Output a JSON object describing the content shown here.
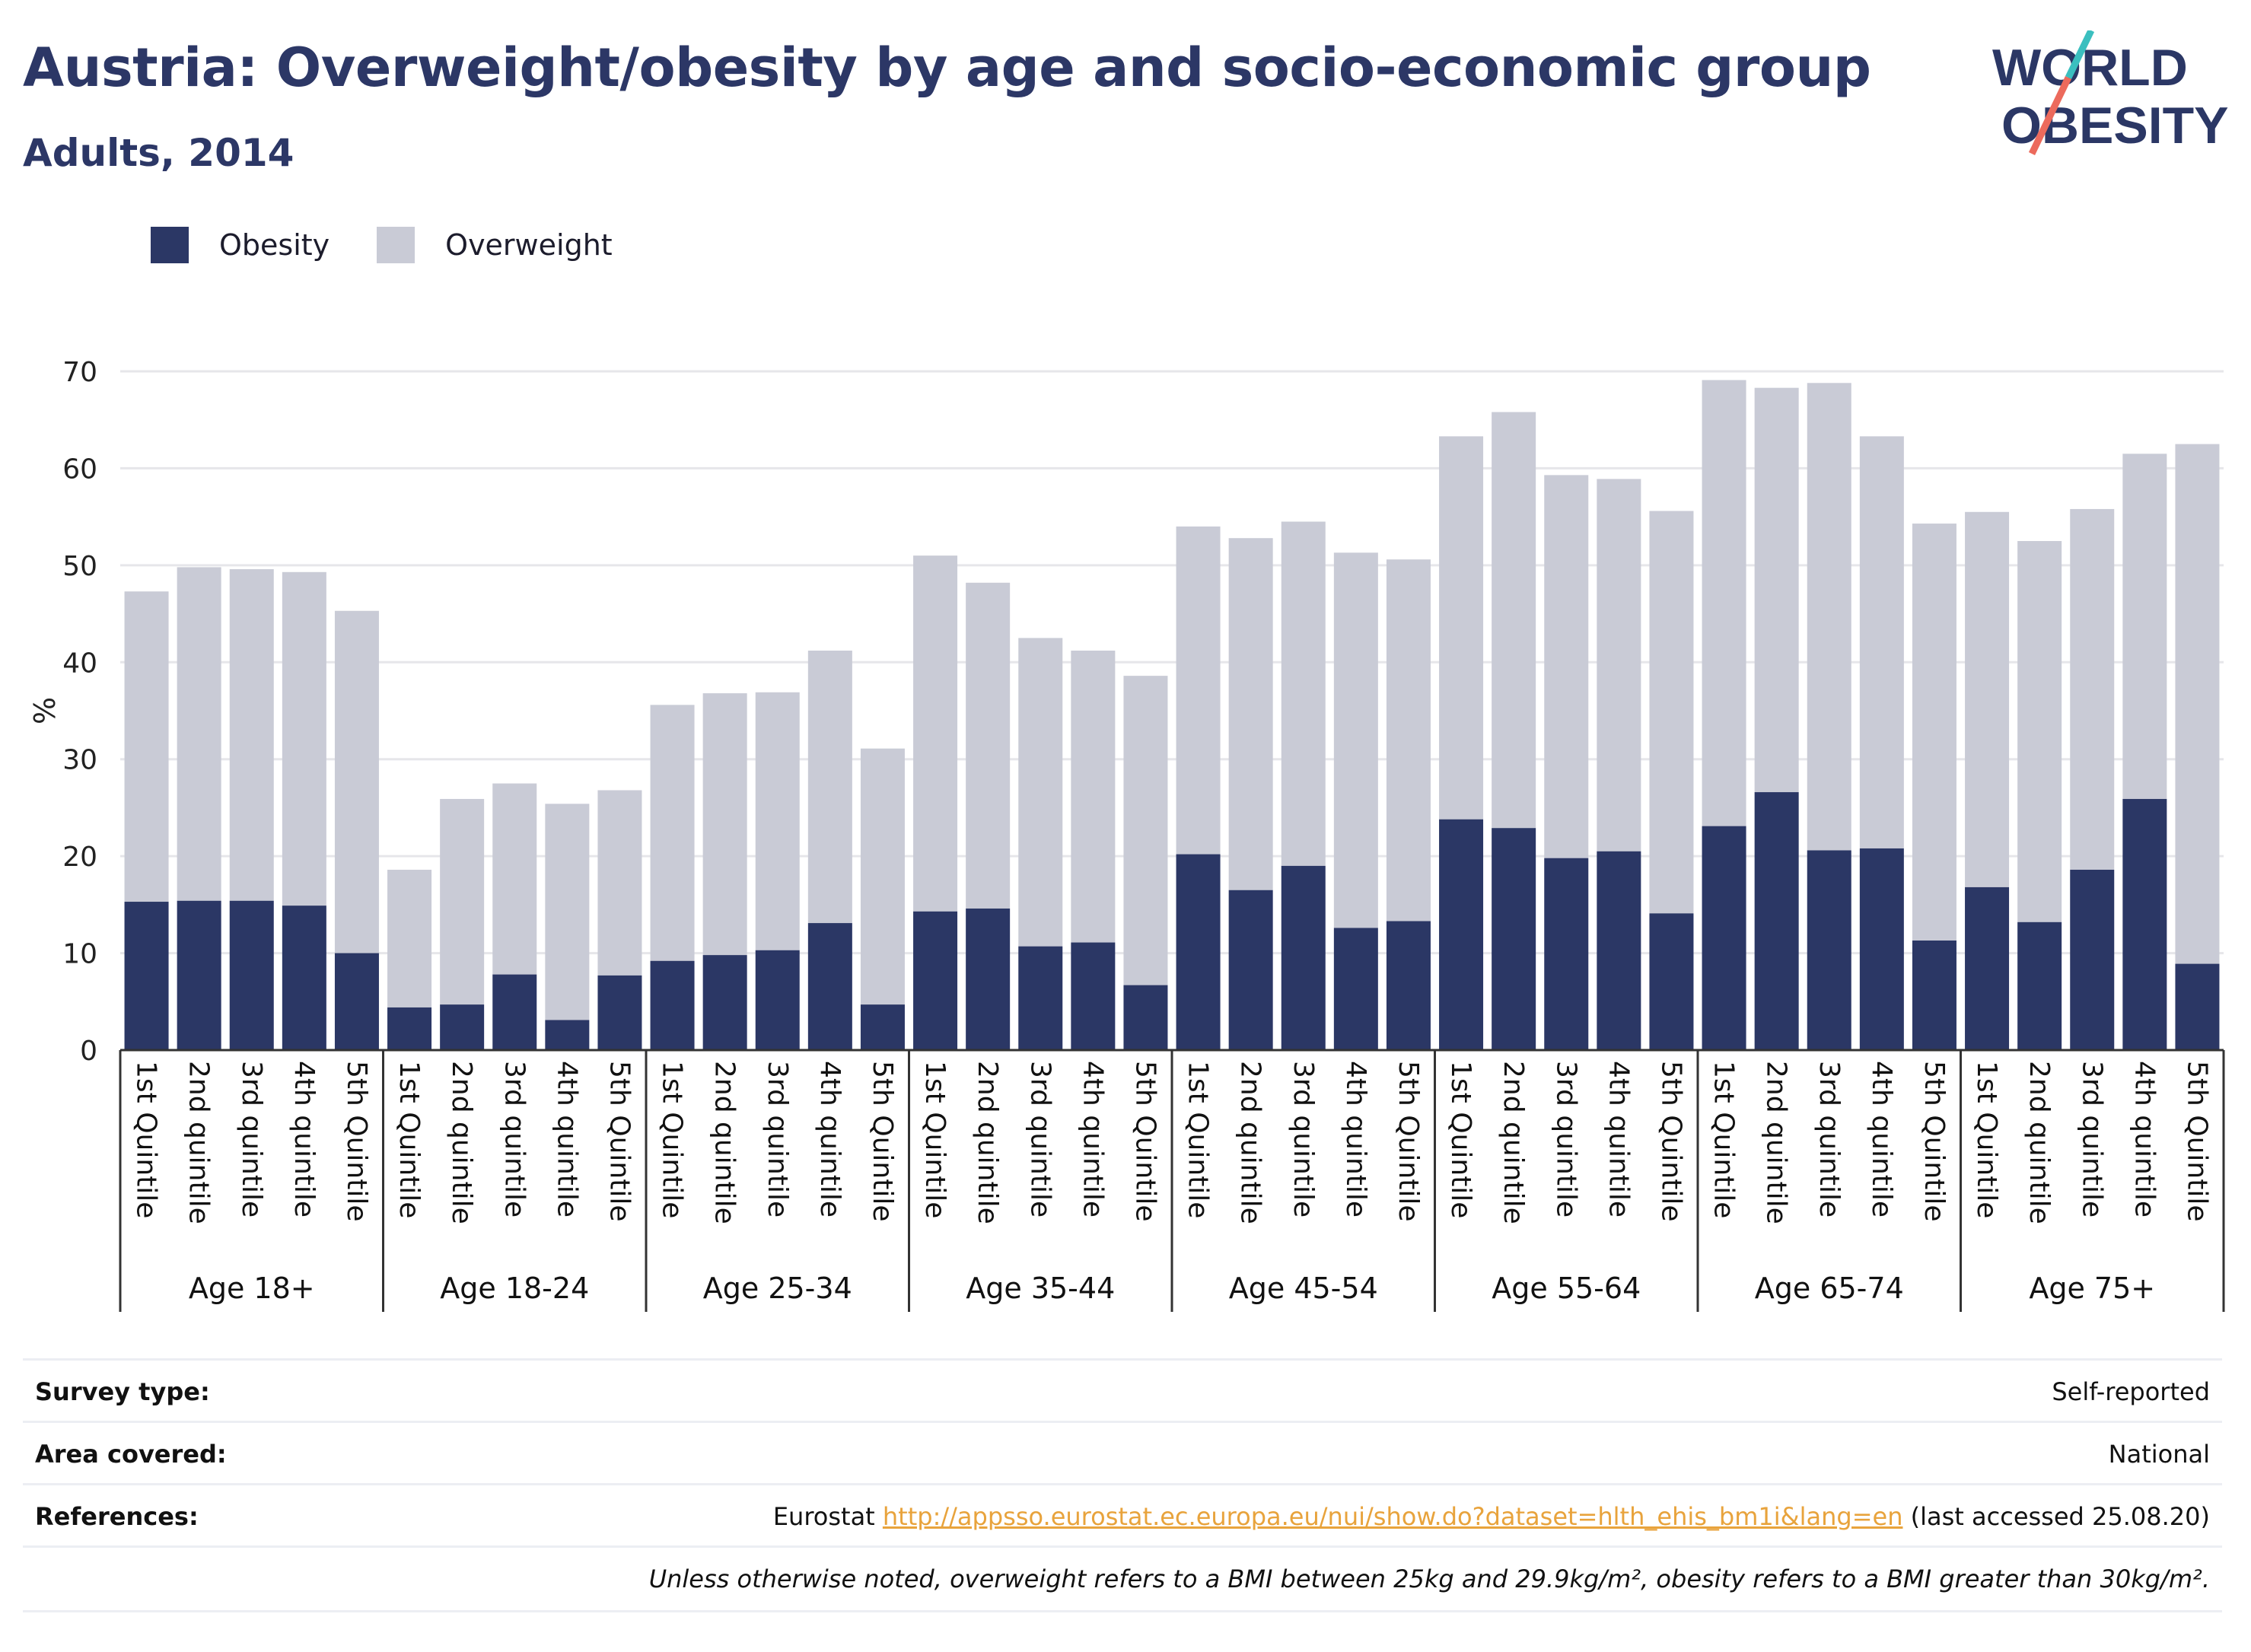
{
  "header": {
    "title": "Austria: Overweight/obesity by age and socio-economic group",
    "subtitle": "Adults, 2014",
    "logo_line1": "WORLD",
    "logo_line2": "OBESITY"
  },
  "legend": {
    "obesity_label": "Obesity",
    "overweight_label": "Overweight"
  },
  "colors": {
    "obesity": "#2b3765",
    "overweight": "#c9cbd6",
    "gridline": "#e6e6ea",
    "logo_teal": "#3bbfbf",
    "logo_coral": "#ec6a5c",
    "link": "#e8a33c"
  },
  "chart_data": {
    "type": "bar",
    "stacked": true,
    "ylabel": "%",
    "ylim": [
      0,
      70
    ],
    "yticks": [
      0,
      10,
      20,
      30,
      40,
      50,
      60,
      70
    ],
    "grid": true,
    "legend_position": "top-left",
    "groups": [
      {
        "label": "Age 18+",
        "categories": [
          "1st Quintile",
          "2nd quintile",
          "3rd quintile",
          "4th quintile",
          "5th Quintile"
        ],
        "obesity": [
          15.3,
          15.4,
          15.4,
          14.9,
          10.0
        ],
        "total": [
          47.3,
          49.8,
          49.6,
          49.3,
          45.3
        ]
      },
      {
        "label": "Age 18-24",
        "categories": [
          "1st Quintile",
          "2nd quintile",
          "3rd quintile",
          "4th quintile",
          "5th Quintile"
        ],
        "obesity": [
          4.4,
          4.7,
          7.8,
          3.1,
          7.7
        ],
        "total": [
          18.6,
          25.9,
          27.5,
          25.4,
          26.8
        ]
      },
      {
        "label": "Age 25-34",
        "categories": [
          "1st Quintile",
          "2nd quintile",
          "3rd quintile",
          "4th quintile",
          "5th Quintile"
        ],
        "obesity": [
          9.2,
          9.8,
          10.3,
          13.1,
          4.7
        ],
        "total": [
          35.6,
          36.8,
          36.9,
          41.2,
          31.1
        ]
      },
      {
        "label": "Age 35-44",
        "categories": [
          "1st Quintile",
          "2nd quintile",
          "3rd quintile",
          "4th quintile",
          "5th Quintile"
        ],
        "obesity": [
          14.3,
          14.6,
          10.7,
          11.1,
          6.7
        ],
        "total": [
          51.0,
          48.2,
          42.5,
          41.2,
          38.6
        ]
      },
      {
        "label": "Age 45-54",
        "categories": [
          "1st Quintile",
          "2nd quintile",
          "3rd quintile",
          "4th quintile",
          "5th Quintile"
        ],
        "obesity": [
          20.2,
          16.5,
          19.0,
          12.6,
          13.3
        ],
        "total": [
          54.0,
          52.8,
          54.5,
          51.3,
          50.6
        ]
      },
      {
        "label": "Age 55-64",
        "categories": [
          "1st Quintile",
          "2nd quintile",
          "3rd quintile",
          "4th quintile",
          "5th Quintile"
        ],
        "obesity": [
          23.8,
          22.9,
          19.8,
          20.5,
          14.1
        ],
        "total": [
          63.3,
          65.8,
          59.3,
          58.9,
          55.6
        ]
      },
      {
        "label": "Age 65-74",
        "categories": [
          "1st Quintile",
          "2nd quintile",
          "3rd quintile",
          "4th quintile",
          "5th Quintile"
        ],
        "obesity": [
          23.1,
          26.6,
          20.6,
          20.8,
          11.3
        ],
        "total": [
          69.1,
          68.3,
          68.8,
          63.3,
          54.3
        ]
      },
      {
        "label": "Age 75+",
        "categories": [
          "1st Quintile",
          "2nd quintile",
          "3rd quintile",
          "4th quintile",
          "5th Quintile"
        ],
        "obesity": [
          16.8,
          13.2,
          18.6,
          25.9,
          8.9
        ],
        "total": [
          55.5,
          52.5,
          55.8,
          61.5,
          62.5
        ]
      }
    ]
  },
  "meta": {
    "survey_label": "Survey type:",
    "survey_value": "Self-reported",
    "area_label": "Area covered:",
    "area_value": "National",
    "ref_label": "References:",
    "ref_prefix": "Eurostat",
    "ref_link": "http://appsso.eurostat.ec.europa.eu/nui/show.do?dataset=hlth_ehis_bm1i&lang=en",
    "ref_suffix": "(last accessed 25.08.20)",
    "note": "Unless otherwise noted, overweight refers to a BMI between 25kg and 29.9kg/m², obesity refers to a BMI greater than 30kg/m²."
  }
}
